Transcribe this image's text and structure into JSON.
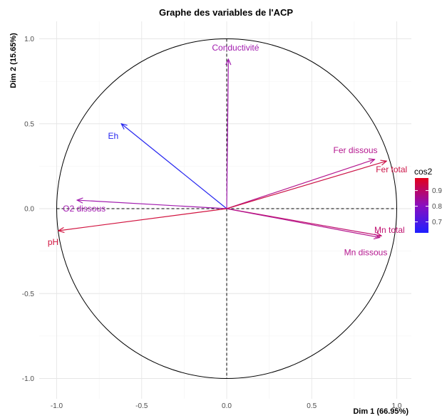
{
  "chart_data": {
    "type": "scatter",
    "subtype": "pca-correlation-circle",
    "title": "Graphe des variables de l'ACP",
    "xlabel": "Dim 1 (66.95%)",
    "ylabel": "Dim 2 (15.65%)",
    "xlim": [
      -1.1,
      1.1
    ],
    "ylim": [
      -1.1,
      1.1
    ],
    "xticks": [
      "-1.0",
      "-0.5",
      "0.0",
      "0.5",
      "1.0"
    ],
    "yticks": [
      "-1.0",
      "-0.5",
      "0.0",
      "0.5",
      "1.0"
    ],
    "grid": true,
    "unit_circle": true,
    "legend": {
      "title": "cos2",
      "position": "right",
      "ticks": [
        "0.7",
        "0.8",
        "0.9"
      ],
      "range": [
        0.63,
        0.98
      ],
      "colors": [
        "#1f1fff",
        "#8a0fbf",
        "#e3001b"
      ]
    },
    "variables": [
      {
        "name": "Conductivité",
        "x": 0.01,
        "y": 0.88,
        "cos2": 0.8,
        "color": "#a21daf"
      },
      {
        "name": "Eh",
        "x": -0.62,
        "y": 0.5,
        "cos2": 0.65,
        "color": "#2828f0"
      },
      {
        "name": "Fer dissous",
        "x": 0.87,
        "y": 0.29,
        "cos2": 0.87,
        "color": "#b5178f"
      },
      {
        "name": "Fer total",
        "x": 0.94,
        "y": 0.28,
        "cos2": 0.94,
        "color": "#cc1346"
      },
      {
        "name": "O2 dissous",
        "x": -0.88,
        "y": 0.05,
        "cos2": 0.8,
        "color": "#a21daf"
      },
      {
        "name": "pH",
        "x": -0.99,
        "y": -0.13,
        "cos2": 0.96,
        "color": "#d1133f"
      },
      {
        "name": "Mn total",
        "x": 0.91,
        "y": -0.16,
        "cos2": 0.88,
        "color": "#c01270"
      },
      {
        "name": "Mn dissous",
        "x": 0.9,
        "y": -0.17,
        "cos2": 0.86,
        "color": "#b5178f"
      }
    ]
  }
}
